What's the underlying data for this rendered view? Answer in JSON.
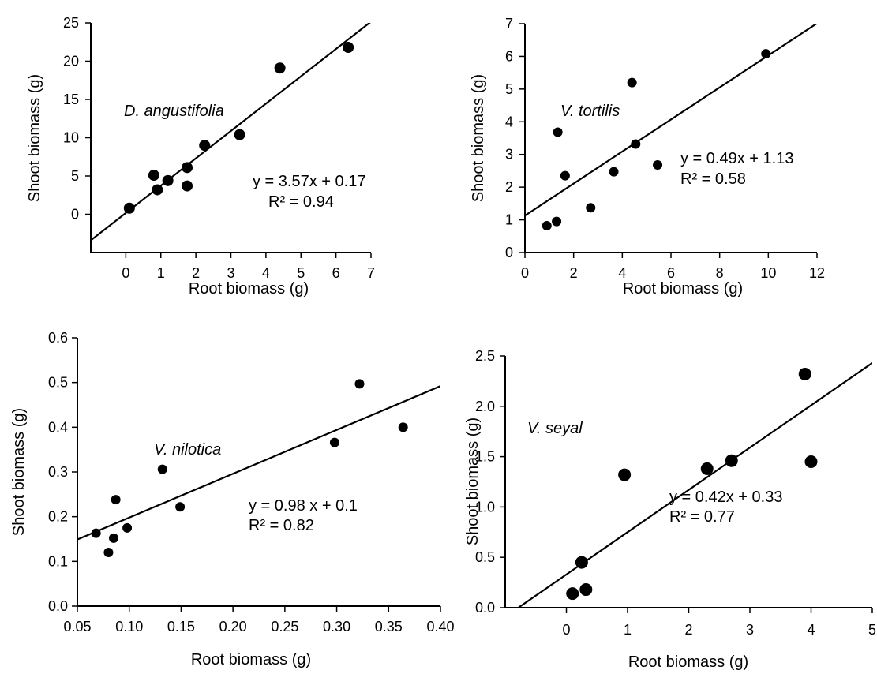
{
  "chart_data": [
    {
      "type": "scatter",
      "species": "D. angustifolia",
      "xlabel": "Root biomass (g)",
      "ylabel": "Shoot biomass (g)",
      "xlim": [
        -1,
        7
      ],
      "ylim": [
        -5,
        25
      ],
      "xticks": [
        "0",
        "1",
        "2",
        "3",
        "4",
        "5",
        "6",
        "7"
      ],
      "yticks": [
        "0",
        "5",
        "10",
        "15",
        "20",
        "25"
      ],
      "equation": "y = 3.57x + 0.17",
      "r2": "R² = 0.94",
      "trend": {
        "slope": 3.57,
        "intercept": 0.17
      },
      "points": [
        [
          0.1,
          0.8
        ],
        [
          0.8,
          5.1
        ],
        [
          0.9,
          3.2
        ],
        [
          1.2,
          4.4
        ],
        [
          1.75,
          6.1
        ],
        [
          1.75,
          3.7
        ],
        [
          2.25,
          9.0
        ],
        [
          3.25,
          10.4
        ],
        [
          4.4,
          19.1
        ],
        [
          6.35,
          21.8
        ]
      ]
    },
    {
      "type": "scatter",
      "species": "V. tortilis",
      "xlabel": "Root biomass (g)",
      "ylabel": "Shoot biomass (g)",
      "xlim": [
        0,
        12
      ],
      "ylim": [
        0,
        7
      ],
      "xticks": [
        "0",
        "2",
        "4",
        "6",
        "8",
        "10",
        "12"
      ],
      "yticks": [
        "0",
        "1",
        "2",
        "3",
        "4",
        "5",
        "6",
        "7"
      ],
      "equation": "y = 0.49x + 1.13",
      "r2": "R² = 0.58",
      "trend": {
        "slope": 0.49,
        "intercept": 1.13
      },
      "points": [
        [
          0.9,
          0.82
        ],
        [
          1.3,
          0.95
        ],
        [
          1.35,
          3.68
        ],
        [
          1.65,
          2.35
        ],
        [
          2.7,
          1.37
        ],
        [
          3.65,
          2.47
        ],
        [
          4.4,
          5.2
        ],
        [
          4.55,
          3.32
        ],
        [
          5.45,
          2.68
        ],
        [
          9.9,
          6.08
        ]
      ]
    },
    {
      "type": "scatter",
      "species": "V. nilotica",
      "xlabel": "Root biomass (g)",
      "ylabel": "Shoot biomass (g)",
      "xlim": [
        0.05,
        0.4
      ],
      "ylim": [
        0,
        0.6
      ],
      "xticks": [
        "0.05",
        "0.10",
        "0.15",
        "0.20",
        "0.25",
        "0.30",
        "0.35",
        "0.40"
      ],
      "yticks": [
        "0.0",
        "0.1",
        "0.2",
        "0.3",
        "0.4",
        "0.5",
        "0.6"
      ],
      "equation": "y = 0.98 x + 0.1",
      "r2": "R² = 0.82",
      "trend": {
        "slope": 0.98,
        "intercept": 0.1
      },
      "points": [
        [
          0.068,
          0.163
        ],
        [
          0.08,
          0.12
        ],
        [
          0.085,
          0.152
        ],
        [
          0.087,
          0.238
        ],
        [
          0.098,
          0.175
        ],
        [
          0.132,
          0.306
        ],
        [
          0.149,
          0.222
        ],
        [
          0.298,
          0.366
        ],
        [
          0.322,
          0.497
        ],
        [
          0.364,
          0.4
        ]
      ]
    },
    {
      "type": "scatter",
      "species": "V. seyal",
      "xlabel": "Root biomass (g)",
      "ylabel": "Shoot biomass (g)",
      "xlim": [
        -1,
        5
      ],
      "ylim": [
        0,
        2.5
      ],
      "xticks": [
        "0",
        "1",
        "2",
        "3",
        "4",
        "5"
      ],
      "yticks": [
        "0.0",
        "0.5",
        "1.0",
        "1.5",
        "2.0",
        "2.5"
      ],
      "equation": "y = 0.42x + 0.33",
      "r2": "R² = 0.77",
      "trend": {
        "slope": 0.42,
        "intercept": 0.33
      },
      "points": [
        [
          0.1,
          0.14
        ],
        [
          0.25,
          0.45
        ],
        [
          0.32,
          0.18
        ],
        [
          0.95,
          1.32
        ],
        [
          2.3,
          1.38
        ],
        [
          2.7,
          1.46
        ],
        [
          3.9,
          2.32
        ],
        [
          4.0,
          1.45
        ]
      ]
    }
  ]
}
